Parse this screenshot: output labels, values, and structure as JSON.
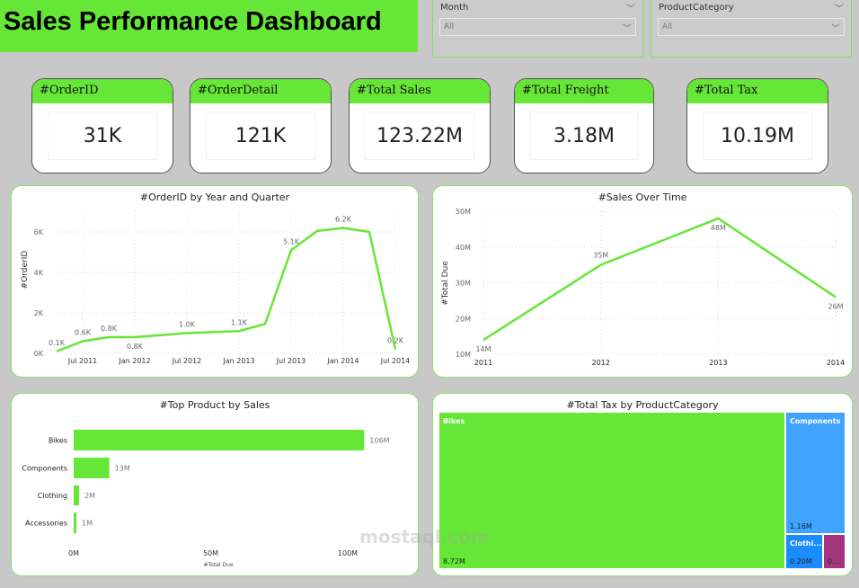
{
  "header": {
    "title": "Sales Performance Dashboard"
  },
  "slicers": [
    {
      "label": "Month",
      "value": "All"
    },
    {
      "label": "ProductCategory",
      "value": "All"
    }
  ],
  "cards": [
    {
      "label": "#OrderID",
      "value": "31K"
    },
    {
      "label": "#OrderDetail",
      "value": "121K"
    },
    {
      "label": "#Total Sales",
      "value": "123.22M"
    },
    {
      "label": "#Total Freight",
      "value": "3.18M"
    },
    {
      "label": "#Total Tax",
      "value": "10.19M"
    }
  ],
  "colors": {
    "accent": "#66e636",
    "background": "#c8c8c8",
    "components": "#3fa3ff",
    "clothing": "#1a8cff",
    "accessories": "#a3357e"
  },
  "watermark": "mostaql.com",
  "chart_data": [
    {
      "type": "line",
      "title": "#OrderID by Year and Quarter",
      "ylabel": "#OrderID",
      "xlabel": "",
      "x": [
        "Apr 2011",
        "Jul 2011",
        "Oct 2011",
        "Jan 2012",
        "Apr 2012",
        "Jul 2012",
        "Oct 2012",
        "Jan 2013",
        "Apr 2013",
        "Jul 2013",
        "Oct 2013",
        "Jan 2014",
        "Apr 2014",
        "Jul 2014"
      ],
      "values": [
        0.1,
        0.6,
        0.8,
        0.8,
        0.9,
        1.0,
        1.05,
        1.1,
        1.45,
        5.1,
        6.05,
        6.2,
        6.0,
        0.2
      ],
      "data_labels": [
        "0.1K",
        "0.6K",
        "0.8K",
        "0.8K",
        "",
        "1.0K",
        "",
        "1.1K",
        "",
        "5.1K",
        "",
        "6.2K",
        "",
        "0.2K"
      ],
      "xticks": [
        "Jul 2011",
        "Jan 2012",
        "Jul 2012",
        "Jan 2013",
        "Jul 2013",
        "Jan 2014",
        "Jul 2014"
      ],
      "yticks": [
        "0K",
        "2K",
        "4K",
        "6K"
      ],
      "ylim": [
        0,
        6.5
      ],
      "unit": "K",
      "grid": true
    },
    {
      "type": "line",
      "title": "#Sales Over Time",
      "ylabel": "#Total Due",
      "xlabel": "",
      "x": [
        "2011",
        "2012",
        "2013",
        "2014"
      ],
      "values": [
        14,
        35,
        48,
        26
      ],
      "data_labels": [
        "14M",
        "35M",
        "48M",
        "26M"
      ],
      "yticks": [
        "10M",
        "20M",
        "30M",
        "40M",
        "50M"
      ],
      "ylim": [
        10,
        50
      ],
      "unit": "M",
      "grid": true
    },
    {
      "type": "bar",
      "orientation": "horizontal",
      "title": "#Top Product by Sales",
      "xlabel": "#Total Due",
      "categories": [
        "Bikes",
        "Components",
        "Clothing",
        "Accessories"
      ],
      "values": [
        106,
        13,
        2,
        1
      ],
      "data_labels": [
        "106M",
        "13M",
        "2M",
        "1M"
      ],
      "xticks": [
        "0M",
        "50M",
        "100M"
      ],
      "xlim": [
        0,
        110
      ],
      "unit": "M"
    },
    {
      "type": "treemap",
      "title": "#Total Tax by ProductCategory",
      "categories": [
        "Bikes",
        "Components",
        "Clothi...",
        ""
      ],
      "values": [
        8.72,
        1.16,
        0.2,
        0.11
      ],
      "data_labels": [
        "8.72M",
        "1.16M",
        "0.20M",
        "0...."
      ]
    }
  ]
}
